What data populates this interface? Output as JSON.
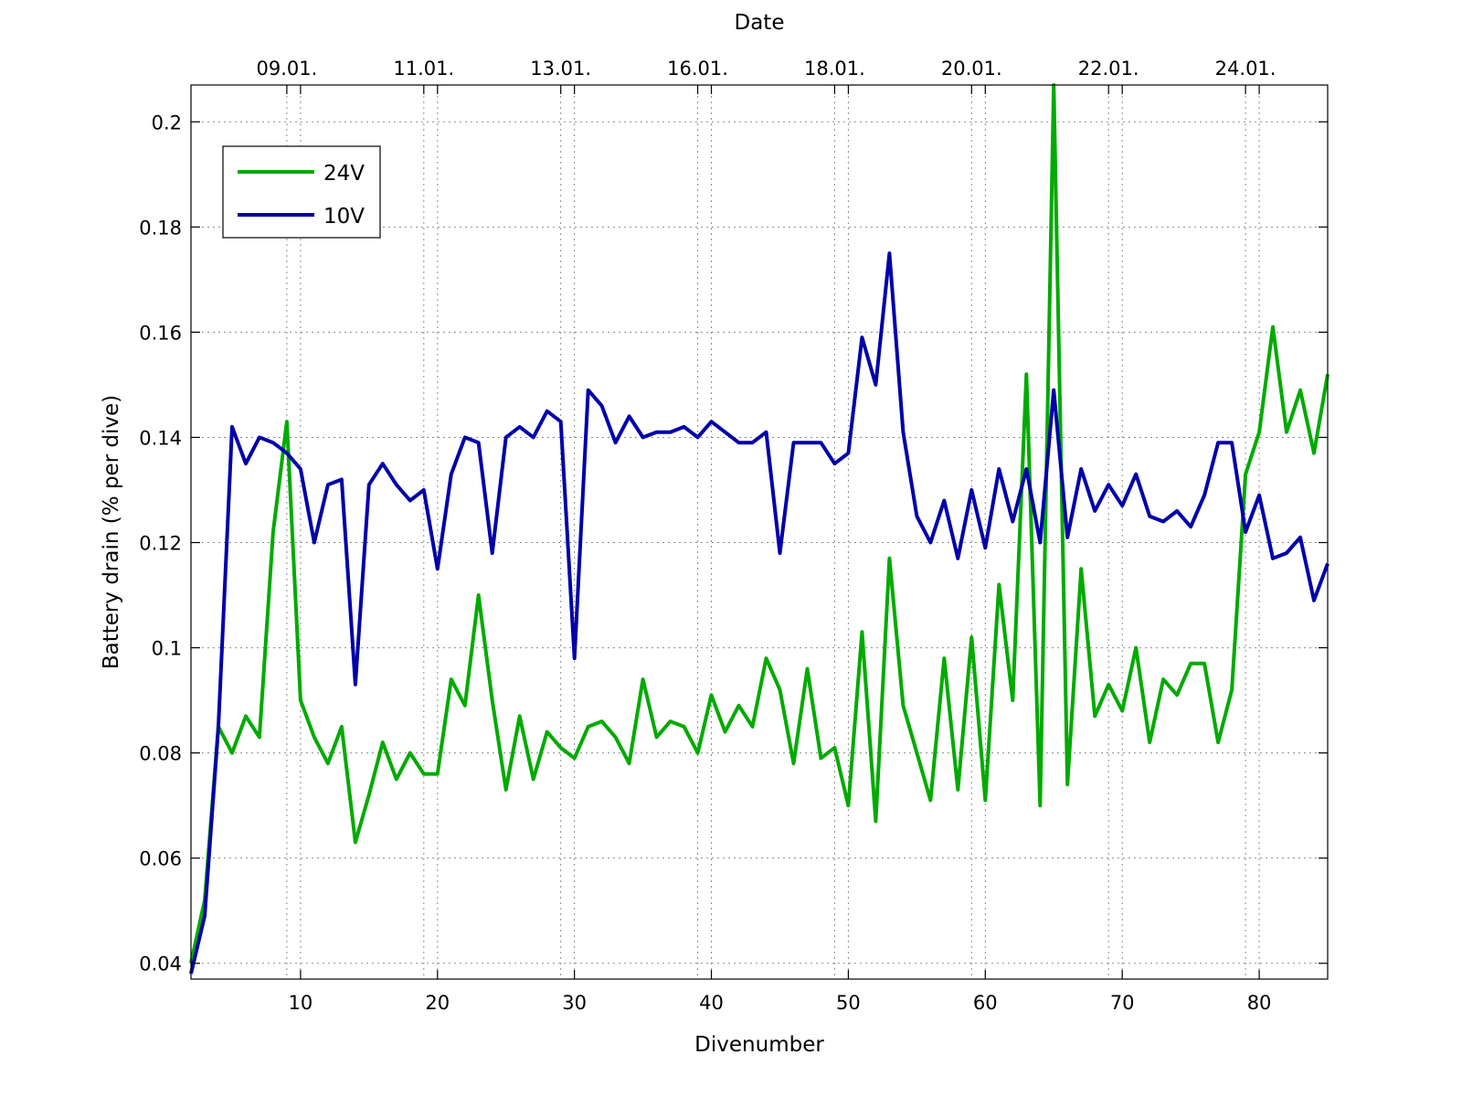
{
  "chart_data": {
    "type": "line",
    "xlabel": "Divenumber",
    "ylabel": "Battery drain (% per dive)",
    "top_xlabel": "Date",
    "xlim": [
      2,
      85
    ],
    "ylim": [
      0.037,
      0.207
    ],
    "xticks": [
      10,
      20,
      30,
      40,
      50,
      60,
      70,
      80
    ],
    "yticks": [
      0.04,
      0.06,
      0.08,
      0.1,
      0.12,
      0.14,
      0.16,
      0.18,
      0.2
    ],
    "ytick_labels": [
      "0.04",
      "0.06",
      "0.08",
      "0.1",
      "0.12",
      "0.14",
      "0.16",
      "0.18",
      "0.2"
    ],
    "date_ticks": [
      {
        "x": 9,
        "label": "09.01."
      },
      {
        "x": 19,
        "label": "11.01."
      },
      {
        "x": 29,
        "label": "13.01."
      },
      {
        "x": 39,
        "label": "16.01."
      },
      {
        "x": 49,
        "label": "18.01."
      },
      {
        "x": 59,
        "label": "20.01."
      },
      {
        "x": 69,
        "label": "22.01."
      },
      {
        "x": 79,
        "label": "24.01."
      }
    ],
    "grid": true,
    "legend_position": "top-left",
    "series": [
      {
        "name": "24V",
        "color": "#00aa00",
        "x": [
          2,
          3,
          4,
          5,
          6,
          7,
          8,
          9,
          10,
          11,
          12,
          13,
          14,
          15,
          16,
          17,
          18,
          19,
          20,
          21,
          22,
          23,
          24,
          25,
          26,
          27,
          28,
          29,
          30,
          31,
          32,
          33,
          34,
          35,
          36,
          37,
          38,
          39,
          40,
          41,
          42,
          43,
          44,
          45,
          46,
          47,
          48,
          49,
          50,
          51,
          52,
          53,
          54,
          55,
          56,
          57,
          58,
          59,
          60,
          61,
          62,
          63,
          64,
          65,
          66,
          67,
          68,
          69,
          70,
          71,
          72,
          73,
          74,
          75,
          76,
          77,
          78,
          79,
          80,
          81,
          82,
          83,
          84,
          85
        ],
        "y": [
          0.04,
          0.052,
          0.085,
          0.08,
          0.087,
          0.083,
          0.122,
          0.143,
          0.09,
          0.083,
          0.078,
          0.085,
          0.063,
          0.072,
          0.082,
          0.075,
          0.08,
          0.076,
          0.076,
          0.094,
          0.089,
          0.11,
          0.09,
          0.073,
          0.087,
          0.075,
          0.084,
          0.081,
          0.079,
          0.085,
          0.086,
          0.083,
          0.078,
          0.094,
          0.083,
          0.086,
          0.085,
          0.08,
          0.091,
          0.084,
          0.089,
          0.085,
          0.098,
          0.092,
          0.078,
          0.096,
          0.079,
          0.081,
          0.07,
          0.103,
          0.067,
          0.117,
          0.089,
          0.08,
          0.071,
          0.098,
          0.073,
          0.102,
          0.071,
          0.112,
          0.09,
          0.152,
          0.07,
          0.207,
          0.074,
          0.115,
          0.087,
          0.093,
          0.088,
          0.1,
          0.082,
          0.094,
          0.091,
          0.097,
          0.097,
          0.082,
          0.092,
          0.133,
          0.141,
          0.161,
          0.141,
          0.149,
          0.137,
          0.152
        ]
      },
      {
        "name": "10V",
        "color": "#0000aa",
        "x": [
          2,
          3,
          4,
          5,
          6,
          7,
          8,
          9,
          10,
          11,
          12,
          13,
          14,
          15,
          16,
          17,
          18,
          19,
          20,
          21,
          22,
          23,
          24,
          25,
          26,
          27,
          28,
          29,
          30,
          31,
          32,
          33,
          34,
          35,
          36,
          37,
          38,
          39,
          40,
          41,
          42,
          43,
          44,
          45,
          46,
          47,
          48,
          49,
          50,
          51,
          52,
          53,
          54,
          55,
          56,
          57,
          58,
          59,
          60,
          61,
          62,
          63,
          64,
          65,
          66,
          67,
          68,
          69,
          70,
          71,
          72,
          73,
          74,
          75,
          76,
          77,
          78,
          79,
          80,
          81,
          82,
          83,
          84,
          85
        ],
        "y": [
          0.038,
          0.049,
          0.085,
          0.142,
          0.135,
          0.14,
          0.139,
          0.137,
          0.134,
          0.12,
          0.131,
          0.132,
          0.093,
          0.131,
          0.135,
          0.131,
          0.128,
          0.13,
          0.115,
          0.133,
          0.14,
          0.139,
          0.118,
          0.14,
          0.142,
          0.14,
          0.145,
          0.143,
          0.098,
          0.149,
          0.146,
          0.139,
          0.144,
          0.14,
          0.141,
          0.141,
          0.142,
          0.14,
          0.143,
          0.141,
          0.139,
          0.139,
          0.141,
          0.118,
          0.139,
          0.139,
          0.139,
          0.135,
          0.137,
          0.159,
          0.15,
          0.175,
          0.141,
          0.125,
          0.12,
          0.128,
          0.117,
          0.13,
          0.119,
          0.134,
          0.124,
          0.134,
          0.12,
          0.149,
          0.121,
          0.134,
          0.126,
          0.131,
          0.127,
          0.133,
          0.125,
          0.124,
          0.126,
          0.123,
          0.129,
          0.139,
          0.139,
          0.122,
          0.129,
          0.117,
          0.118,
          0.121,
          0.109,
          0.116
        ]
      }
    ]
  }
}
